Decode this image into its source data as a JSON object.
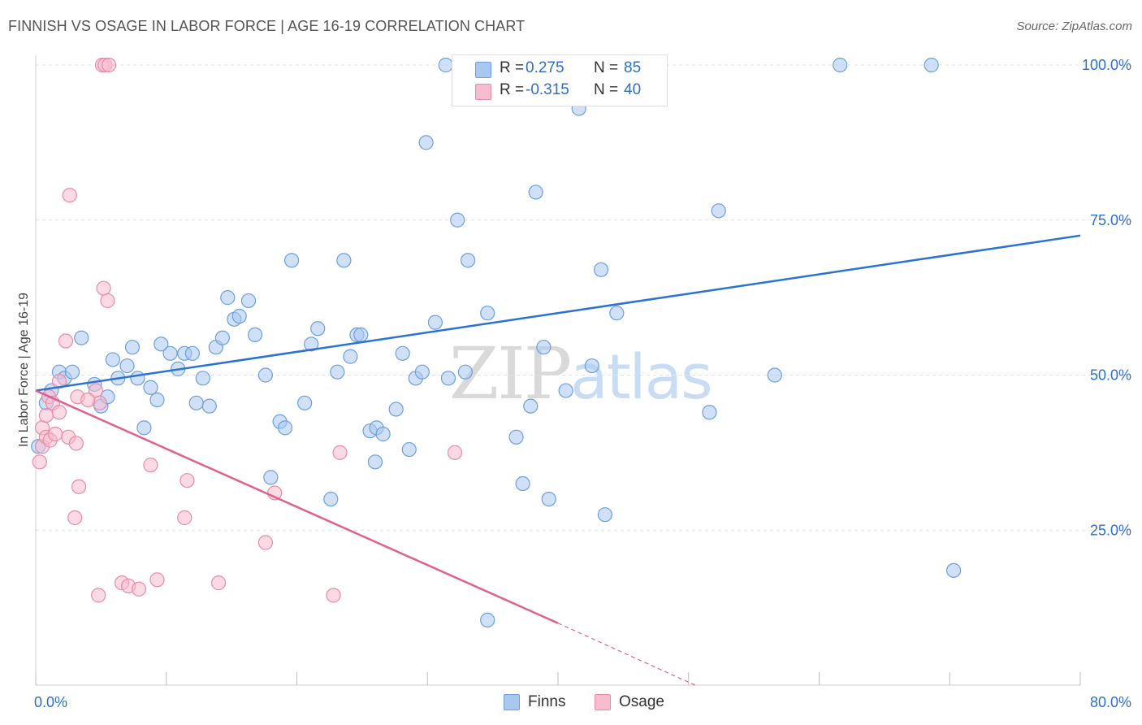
{
  "header": {
    "title": "FINNISH VS OSAGE IN LABOR FORCE | AGE 16-19 CORRELATION CHART",
    "source": "Source: ZipAtlas.com"
  },
  "watermark": {
    "part1": "ZIP",
    "part2": "atlas"
  },
  "legend": {
    "rows": [
      {
        "r_label": "R =",
        "r_value": "0.275",
        "n_label": "N =",
        "n_value": "85",
        "color": "#a9c8f0"
      },
      {
        "r_label": "R =",
        "r_value": "-0.315",
        "n_label": "N =",
        "n_value": "40",
        "color": "#f7bccd"
      }
    ],
    "series": [
      {
        "label": "Finns",
        "color": "#a9c8f0"
      },
      {
        "label": "Osage",
        "color": "#f7bccd"
      }
    ]
  },
  "colors": {
    "finns_fill": "#a9c8f0",
    "finns_stroke": "#6d9fdb",
    "finns_line": "#2a72d4",
    "osage_fill": "#f7bccd",
    "osage_stroke": "#e98aa8",
    "osage_line": "#e0608f",
    "tick_label": "#2f6fc8",
    "grid": "#e2e2e2"
  },
  "chart_data": {
    "type": "scatter",
    "title": "FINNISH VS OSAGE IN LABOR FORCE | AGE 16-19 CORRELATION CHART",
    "xlabel": "",
    "ylabel": "In Labor Force | Age 16-19",
    "xlim": [
      0,
      80
    ],
    "ylim": [
      0,
      104
    ],
    "x_tick_labels": [
      "0.0%",
      "80.0%"
    ],
    "y_ticks": [
      25,
      50,
      75,
      100
    ],
    "y_tick_labels": [
      "25.0%",
      "50.0%",
      "75.0%",
      "100.0%"
    ],
    "grid": "horizontal dashed",
    "legend_position": "top-center",
    "series": [
      {
        "name": "Finns",
        "r": 0.275,
        "n": 85,
        "trend": {
          "x": [
            0,
            80
          ],
          "y": [
            47.5,
            72.5
          ],
          "dashed_from_x": null
        },
        "points": [
          [
            0.2,
            38.5
          ],
          [
            0.8,
            45.5
          ],
          [
            1.2,
            47.5
          ],
          [
            1.8,
            50.5
          ],
          [
            2.2,
            49.5
          ],
          [
            2.8,
            50.5
          ],
          [
            3.5,
            56
          ],
          [
            4.5,
            48.5
          ],
          [
            5.0,
            45
          ],
          [
            5.5,
            46.5
          ],
          [
            5.9,
            52.5
          ],
          [
            6.3,
            49.5
          ],
          [
            7.0,
            51.5
          ],
          [
            7.4,
            54.5
          ],
          [
            7.8,
            49.5
          ],
          [
            8.3,
            41.5
          ],
          [
            8.8,
            48
          ],
          [
            9.3,
            46
          ],
          [
            9.6,
            55
          ],
          [
            10.3,
            53.5
          ],
          [
            10.9,
            51
          ],
          [
            11.4,
            53.5
          ],
          [
            12.0,
            53.5
          ],
          [
            12.3,
            45.5
          ],
          [
            12.8,
            49.5
          ],
          [
            13.3,
            45
          ],
          [
            13.8,
            54.5
          ],
          [
            14.3,
            56
          ],
          [
            14.7,
            62.5
          ],
          [
            15.2,
            59
          ],
          [
            15.6,
            59.5
          ],
          [
            16.3,
            62
          ],
          [
            16.8,
            56.5
          ],
          [
            17.6,
            50
          ],
          [
            18.0,
            33.5
          ],
          [
            18.7,
            42.5
          ],
          [
            19.1,
            41.5
          ],
          [
            19.6,
            68.5
          ],
          [
            20.6,
            45.5
          ],
          [
            21.1,
            55
          ],
          [
            21.6,
            57.5
          ],
          [
            22.6,
            30
          ],
          [
            23.1,
            50.5
          ],
          [
            23.6,
            68.5
          ],
          [
            24.1,
            53
          ],
          [
            24.6,
            56.5
          ],
          [
            24.9,
            56.5
          ],
          [
            25.6,
            41
          ],
          [
            26.1,
            41.5
          ],
          [
            26.6,
            40.5
          ],
          [
            27.6,
            44.5
          ],
          [
            28.1,
            53.5
          ],
          [
            28.6,
            38
          ],
          [
            29.1,
            49.5
          ],
          [
            29.6,
            50.5
          ],
          [
            29.9,
            87.5
          ],
          [
            30.6,
            58.5
          ],
          [
            31.6,
            49.5
          ],
          [
            31.4,
            100
          ],
          [
            32.3,
            75
          ],
          [
            32.9,
            50.5
          ],
          [
            33.1,
            68.5
          ],
          [
            33.9,
            100
          ],
          [
            34.6,
            60
          ],
          [
            34.6,
            10.5
          ],
          [
            35.3,
            100
          ],
          [
            37.3,
            32.5
          ],
          [
            37.9,
            45
          ],
          [
            38.3,
            79.5
          ],
          [
            38.9,
            54.5
          ],
          [
            39.3,
            30
          ],
          [
            40.6,
            47.5
          ],
          [
            41.6,
            93
          ],
          [
            42.6,
            51.5
          ],
          [
            43.6,
            27.5
          ],
          [
            43.3,
            67
          ],
          [
            52.3,
            76.5
          ],
          [
            51.6,
            44
          ],
          [
            56.6,
            50
          ],
          [
            61.6,
            100
          ],
          [
            68.6,
            100
          ],
          [
            70.3,
            18.5
          ],
          [
            36.8,
            40
          ],
          [
            26.0,
            36
          ],
          [
            44.5,
            60
          ]
        ]
      },
      {
        "name": "Osage",
        "r": -0.315,
        "n": 40,
        "trend": {
          "x": [
            0,
            40,
            50.5
          ],
          "y": [
            47.5,
            10,
            0
          ],
          "dashed_from_x": 40
        },
        "points": [
          [
            0.3,
            36
          ],
          [
            0.5,
            38.5
          ],
          [
            0.5,
            41.5
          ],
          [
            0.8,
            43.5
          ],
          [
            0.8,
            40
          ],
          [
            1.0,
            46.5
          ],
          [
            1.1,
            39.5
          ],
          [
            1.3,
            45.5
          ],
          [
            1.5,
            40.5
          ],
          [
            1.8,
            49
          ],
          [
            1.8,
            44
          ],
          [
            2.3,
            55.5
          ],
          [
            2.5,
            40
          ],
          [
            2.6,
            79
          ],
          [
            3.0,
            27
          ],
          [
            3.3,
            32
          ],
          [
            3.1,
            39
          ],
          [
            4.6,
            47.5
          ],
          [
            4.9,
            45.5
          ],
          [
            5.2,
            64
          ],
          [
            5.5,
            62
          ],
          [
            4.8,
            14.5
          ],
          [
            6.6,
            16.5
          ],
          [
            7.1,
            16
          ],
          [
            7.9,
            15.5
          ],
          [
            8.8,
            35.5
          ],
          [
            9.3,
            17
          ],
          [
            11.4,
            27
          ],
          [
            11.6,
            33
          ],
          [
            14.0,
            16.5
          ],
          [
            17.6,
            23
          ],
          [
            18.3,
            31
          ],
          [
            22.8,
            14.5
          ],
          [
            23.3,
            37.5
          ],
          [
            32.1,
            37.5
          ],
          [
            5.1,
            100
          ],
          [
            5.3,
            100
          ],
          [
            5.6,
            100
          ],
          [
            3.2,
            46.5
          ],
          [
            4.0,
            46
          ]
        ]
      }
    ]
  }
}
